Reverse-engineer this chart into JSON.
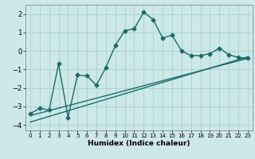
{
  "title": "",
  "xlabel": "Humidex (Indice chaleur)",
  "xlim": [
    -0.5,
    23.5
  ],
  "ylim": [
    -4.3,
    2.5
  ],
  "yticks": [
    -4,
    -3,
    -2,
    -1,
    0,
    1,
    2
  ],
  "xticks": [
    0,
    1,
    2,
    3,
    4,
    5,
    6,
    7,
    8,
    9,
    10,
    11,
    12,
    13,
    14,
    15,
    16,
    17,
    18,
    19,
    20,
    21,
    22,
    23
  ],
  "bg_color": "#cde8e8",
  "grid_color": "#aacfcf",
  "line_color": "#1a6b6b",
  "curve_x": [
    0,
    1,
    2,
    3,
    4,
    5,
    6,
    7,
    8,
    9,
    10,
    11,
    12,
    13,
    14,
    15,
    16,
    17,
    18,
    19,
    20,
    21,
    22,
    23
  ],
  "curve_y": [
    -3.4,
    -3.1,
    -3.2,
    -0.7,
    -3.6,
    -1.3,
    -1.35,
    -1.85,
    -0.9,
    0.3,
    1.1,
    1.2,
    2.1,
    1.7,
    0.7,
    0.85,
    0.0,
    -0.25,
    -0.25,
    -0.15,
    0.15,
    -0.2,
    -0.35,
    -0.4
  ],
  "line1_x": [
    0,
    23
  ],
  "line1_y": [
    -3.5,
    -0.4
  ],
  "line2_x": [
    0,
    23
  ],
  "line2_y": [
    -3.85,
    -0.32
  ],
  "marker": "D",
  "markersize": 2.5,
  "linewidth": 1.0
}
